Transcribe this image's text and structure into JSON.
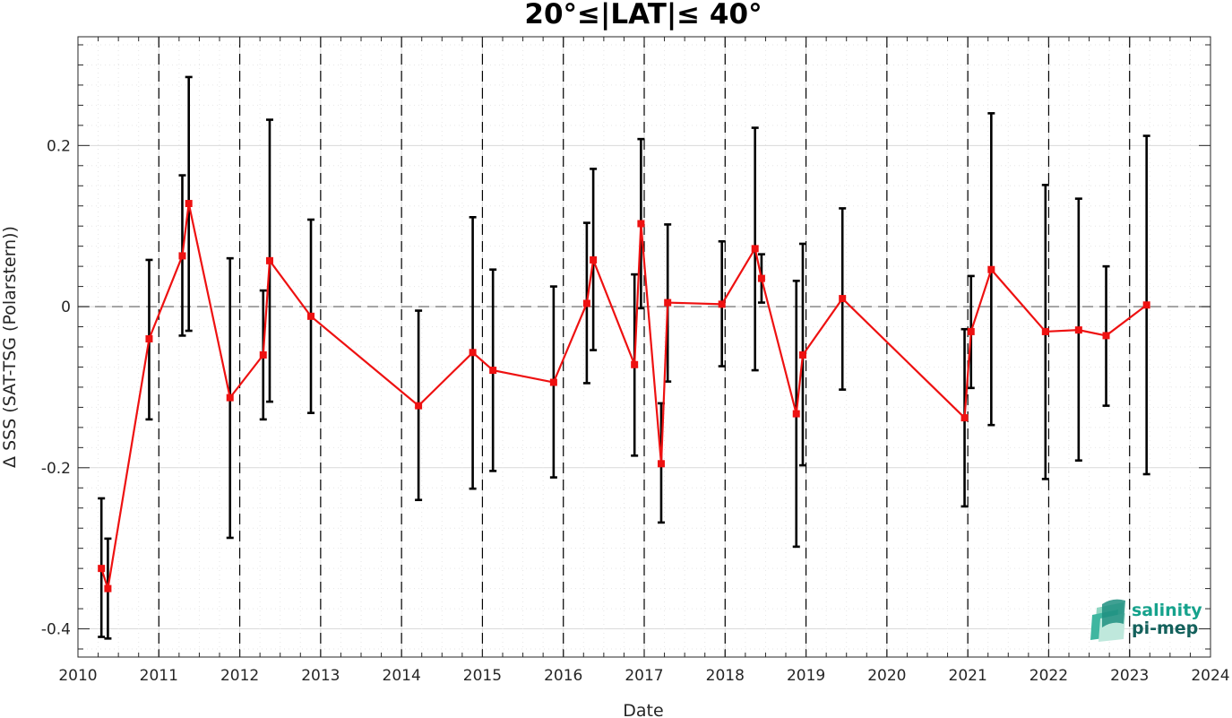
{
  "chart_data": {
    "type": "scatter",
    "title": "20°≤|LAT|≤ 40°",
    "xlabel": "Date",
    "ylabel": "Δ SSS (SAT-TSG (Polarstern))",
    "xlim": [
      2010,
      2024
    ],
    "ylim": [
      -0.435,
      0.335
    ],
    "x_ticks": [
      "2010",
      "2011",
      "2012",
      "2013",
      "2014",
      "2015",
      "2016",
      "2017",
      "2018",
      "2019",
      "2020",
      "2021",
      "2022",
      "2023",
      "2024"
    ],
    "y_ticks": [
      "-0.4",
      "-0.2",
      "0",
      "0.2"
    ],
    "y_tick_values": [
      -0.4,
      -0.2,
      0,
      0.2
    ],
    "grid": true,
    "zero_line": true,
    "year_dividers": [
      2011,
      2012,
      2013,
      2014,
      2015,
      2016,
      2017,
      2018,
      2019,
      2020,
      2021,
      2022,
      2023
    ],
    "series": [
      {
        "marker": "square",
        "color": "#ee1111",
        "errorbar_color": "#000000",
        "points": [
          {
            "x": 2010.29,
            "y": -0.325,
            "lo": -0.41,
            "hi": -0.238
          },
          {
            "x": 2010.37,
            "y": -0.35,
            "lo": -0.412,
            "hi": -0.288
          },
          {
            "x": 2010.88,
            "y": -0.04,
            "lo": -0.14,
            "hi": 0.058
          },
          {
            "x": 2011.29,
            "y": 0.063,
            "lo": -0.036,
            "hi": 0.163
          },
          {
            "x": 2011.37,
            "y": 0.128,
            "lo": -0.03,
            "hi": 0.285
          },
          {
            "x": 2011.88,
            "y": -0.113,
            "lo": -0.287,
            "hi": 0.06
          },
          {
            "x": 2012.29,
            "y": -0.06,
            "lo": -0.14,
            "hi": 0.02
          },
          {
            "x": 2012.37,
            "y": 0.057,
            "lo": -0.118,
            "hi": 0.232
          },
          {
            "x": 2012.88,
            "y": -0.012,
            "lo": -0.132,
            "hi": 0.108
          },
          {
            "x": 2014.21,
            "y": -0.123,
            "lo": -0.24,
            "hi": -0.005
          },
          {
            "x": 2014.88,
            "y": -0.057,
            "lo": -0.226,
            "hi": 0.111
          },
          {
            "x": 2015.13,
            "y": -0.079,
            "lo": -0.204,
            "hi": 0.046
          },
          {
            "x": 2015.88,
            "y": -0.094,
            "lo": -0.212,
            "hi": 0.025
          },
          {
            "x": 2016.29,
            "y": 0.004,
            "lo": -0.095,
            "hi": 0.104
          },
          {
            "x": 2016.37,
            "y": 0.058,
            "lo": -0.054,
            "hi": 0.171
          },
          {
            "x": 2016.88,
            "y": -0.072,
            "lo": -0.185,
            "hi": 0.04
          },
          {
            "x": 2016.96,
            "y": 0.103,
            "lo": -0.002,
            "hi": 0.208
          },
          {
            "x": 2017.21,
            "y": -0.195,
            "lo": -0.268,
            "hi": -0.12
          },
          {
            "x": 2017.29,
            "y": 0.005,
            "lo": -0.093,
            "hi": 0.102
          },
          {
            "x": 2017.96,
            "y": 0.003,
            "lo": -0.074,
            "hi": 0.081
          },
          {
            "x": 2018.37,
            "y": 0.072,
            "lo": -0.079,
            "hi": 0.222
          },
          {
            "x": 2018.45,
            "y": 0.035,
            "lo": 0.005,
            "hi": 0.065
          },
          {
            "x": 2018.88,
            "y": -0.133,
            "lo": -0.298,
            "hi": 0.032
          },
          {
            "x": 2018.96,
            "y": -0.06,
            "lo": -0.197,
            "hi": 0.078
          },
          {
            "x": 2019.45,
            "y": 0.01,
            "lo": -0.103,
            "hi": 0.122
          },
          {
            "x": 2020.96,
            "y": -0.138,
            "lo": -0.248,
            "hi": -0.028
          },
          {
            "x": 2021.04,
            "y": -0.031,
            "lo": -0.101,
            "hi": 0.038
          },
          {
            "x": 2021.29,
            "y": 0.046,
            "lo": -0.147,
            "hi": 0.24
          },
          {
            "x": 2021.96,
            "y": -0.031,
            "lo": -0.214,
            "hi": 0.151
          },
          {
            "x": 2022.37,
            "y": -0.029,
            "lo": -0.191,
            "hi": 0.134
          },
          {
            "x": 2022.71,
            "y": -0.036,
            "lo": -0.123,
            "hi": 0.05
          },
          {
            "x": 2023.21,
            "y": 0.002,
            "lo": -0.208,
            "hi": 0.212
          }
        ]
      }
    ]
  },
  "logo": {
    "line1": "salinity",
    "line2": "pi-mep",
    "color1": "#16a28c",
    "color2": "#14615c"
  }
}
